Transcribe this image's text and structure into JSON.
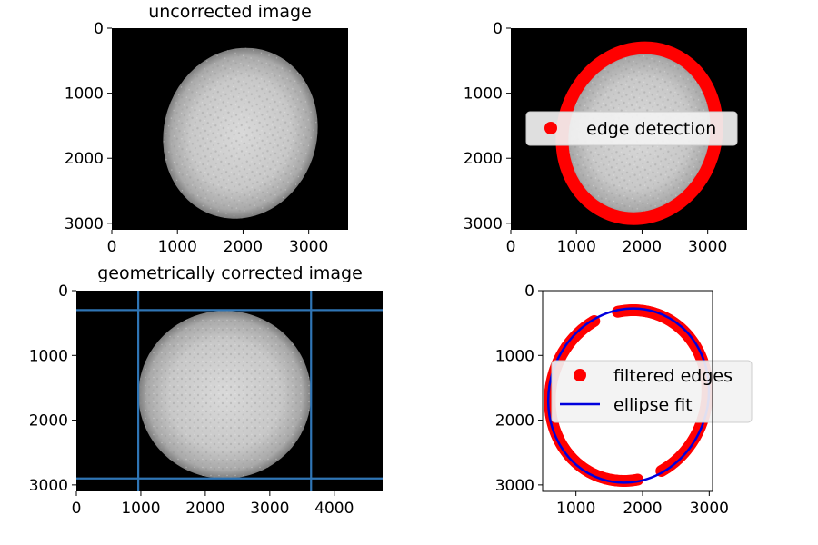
{
  "colors": {
    "edge_red": "#ff0000",
    "fit_blue": "#0000dd",
    "line_blue": "#2f75b5",
    "image_bg": "#000000",
    "legend_bg": "#f2f2f2",
    "legend_border": "#cccccc"
  },
  "chart_data": [
    {
      "type": "image",
      "title": "uncorrected image",
      "xlim": [
        0,
        3600
      ],
      "ylim": [
        3100,
        0
      ],
      "xticks": [
        0,
        1000,
        2000,
        3000
      ],
      "yticks": [
        0,
        1000,
        2000,
        3000
      ],
      "image": {
        "kind": "solar disk",
        "center": [
          1960,
          1620
        ],
        "radii": [
          1170,
          1330
        ],
        "rotation_deg": 18
      }
    },
    {
      "type": "image",
      "title": "",
      "xlim": [
        0,
        3600
      ],
      "ylim": [
        3100,
        0
      ],
      "xticks": [
        0,
        1000,
        2000,
        3000
      ],
      "yticks": [
        0,
        1000,
        2000,
        3000
      ],
      "image": {
        "kind": "solar disk",
        "center": [
          1960,
          1620
        ],
        "radii": [
          1170,
          1330
        ],
        "rotation_deg": 18
      },
      "overlay": {
        "kind": "ellipse edge band",
        "center": [
          1960,
          1620
        ],
        "radii": [
          1170,
          1330
        ],
        "rotation_deg": 18,
        "width": 160
      },
      "legend": [
        {
          "label": "edge detection",
          "marker": "dot"
        }
      ],
      "legend_position": "center-right"
    },
    {
      "type": "image",
      "title": "geometrically corrected image",
      "xlim": [
        0,
        4750
      ],
      "ylim": [
        3100,
        0
      ],
      "xticks": [
        0,
        1000,
        2000,
        3000,
        4000
      ],
      "yticks": [
        0,
        1000,
        2000,
        3000
      ],
      "image": {
        "kind": "solar disk",
        "center": [
          2300,
          1600
        ],
        "radii": [
          1340,
          1300
        ],
        "rotation_deg": 0
      },
      "vlines": [
        960,
        3640
      ],
      "hlines": [
        300,
        2900
      ]
    },
    {
      "type": "scatter",
      "title": "",
      "xlim": [
        500,
        3050
      ],
      "ylim": [
        3100,
        0
      ],
      "xticks": [
        1000,
        2000,
        3000
      ],
      "yticks": [
        0,
        1000,
        2000,
        3000
      ],
      "ellipse_fit": {
        "center": [
          1790,
          1620
        ],
        "radii": [
          1170,
          1330
        ],
        "rotation_deg": 18
      },
      "filtered_edges": {
        "gap_top": [
          1280,
          1620
        ],
        "gap_bottom": [
          1940,
          2280
        ]
      },
      "legend": [
        {
          "label": "filtered edges",
          "marker": "dot"
        },
        {
          "label": "ellipse fit",
          "marker": "line"
        }
      ],
      "legend_position": "center"
    }
  ]
}
